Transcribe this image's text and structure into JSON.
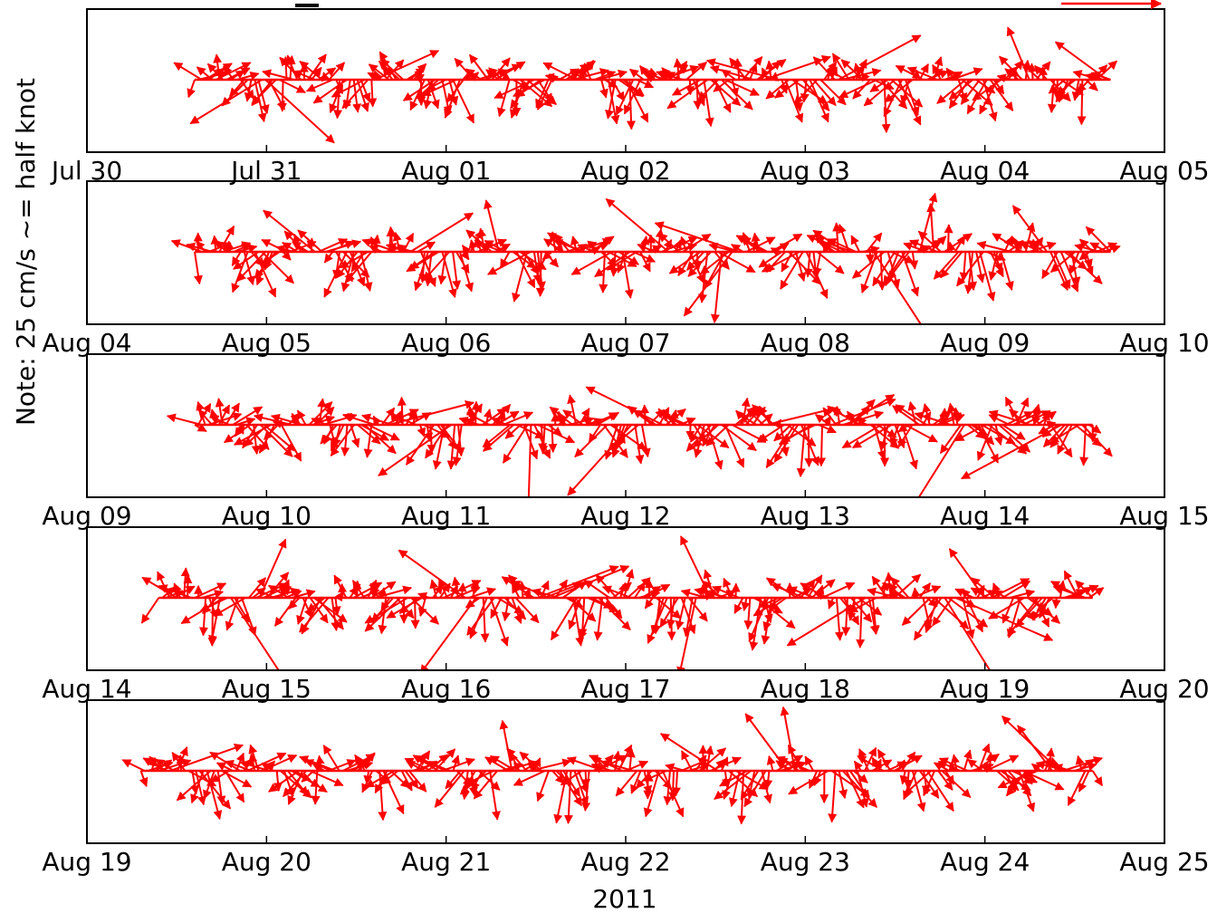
{
  "chart_data": {
    "type": "quiver",
    "ylabel": "Note: 25 cm/s ~= half knot",
    "xlabel": "2011",
    "arrow_color": "#ff0000",
    "panels": [
      {
        "ticks": [
          "Jul 30",
          "Jul 31",
          "Aug 01",
          "Aug 02",
          "Aug 03",
          "Aug 04",
          "Aug 05"
        ],
        "data_start": 0.6,
        "data_end": 5.7
      },
      {
        "ticks": [
          "Aug 04",
          "Aug 05",
          "Aug 06",
          "Aug 07",
          "Aug 08",
          "Aug 09",
          "Aug 10"
        ],
        "data_start": 0.6,
        "data_end": 5.7
      },
      {
        "ticks": [
          "Aug 09",
          "Aug 10",
          "Aug 11",
          "Aug 12",
          "Aug 13",
          "Aug 14",
          "Aug 15"
        ],
        "data_start": 0.6,
        "data_end": 5.6
      },
      {
        "ticks": [
          "Aug 14",
          "Aug 15",
          "Aug 16",
          "Aug 17",
          "Aug 18",
          "Aug 19",
          "Aug 20"
        ],
        "data_start": 0.4,
        "data_end": 5.6
      },
      {
        "ticks": [
          "Aug 19",
          "Aug 20",
          "Aug 21",
          "Aug 22",
          "Aug 23",
          "Aug 24",
          "Aug 25"
        ],
        "data_start": 0.3,
        "data_end": 5.6
      }
    ]
  }
}
